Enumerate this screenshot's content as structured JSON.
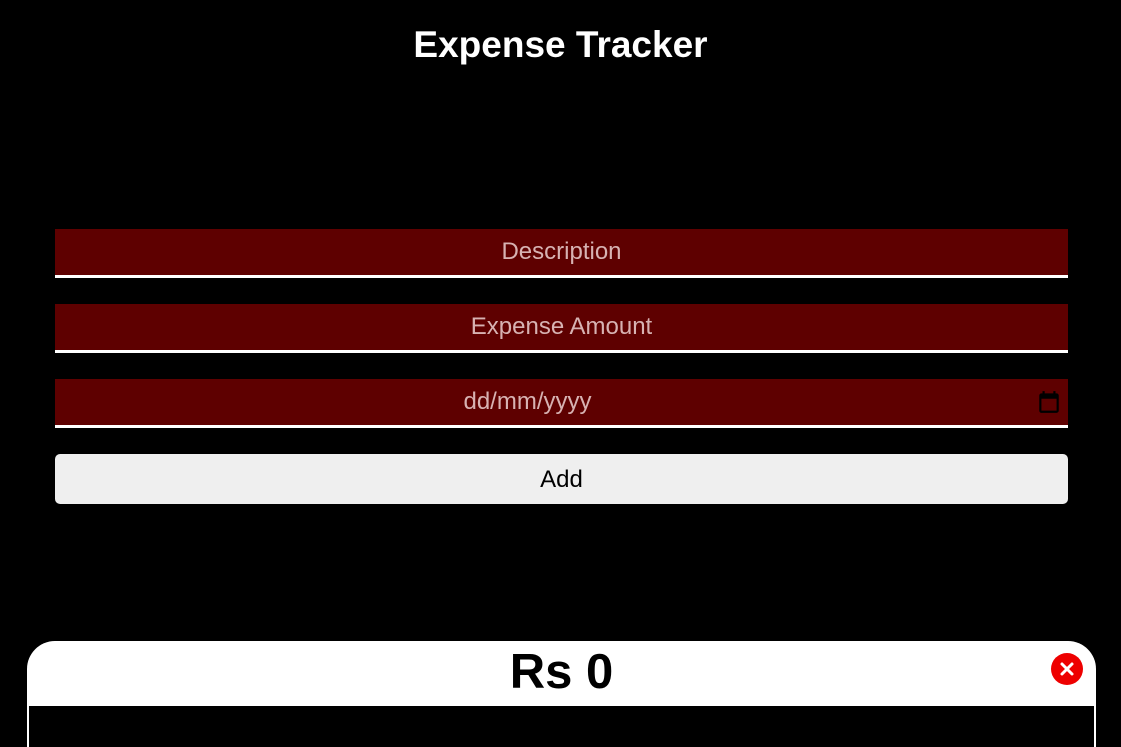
{
  "app": {
    "title": "Expense Tracker"
  },
  "form": {
    "description_placeholder": "Description",
    "amount_placeholder": "Expense Amount",
    "date_placeholder": "dd/mm/yyyy",
    "date_icon": "calendar-icon",
    "add_label": "Add"
  },
  "summary": {
    "total": "Rs 0",
    "close_icon": "close-icon"
  },
  "colors": {
    "background": "#000000",
    "field_background": "#5e0000",
    "button_background": "#efefef",
    "close_button": "#ee0000"
  }
}
